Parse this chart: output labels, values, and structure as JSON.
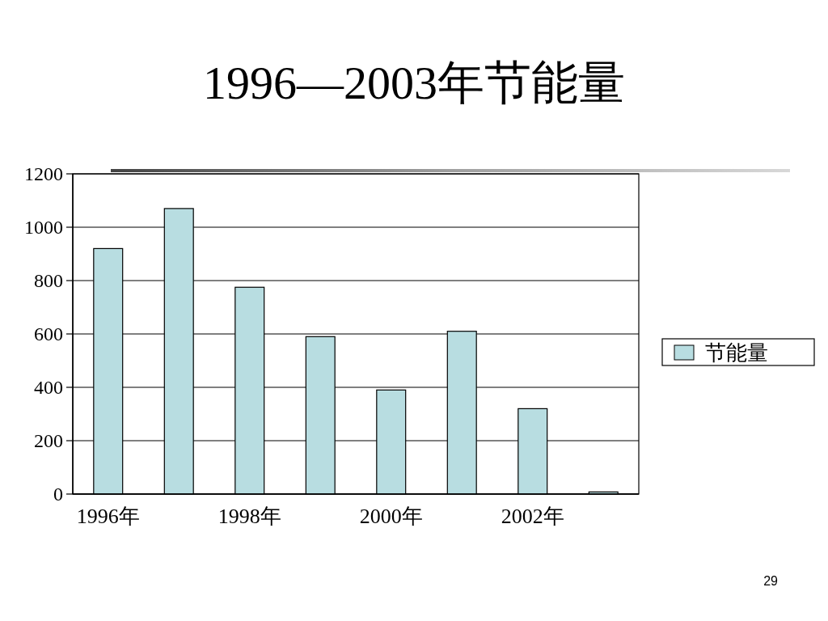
{
  "chart_data": {
    "type": "bar",
    "title": "1996—2003年节能量",
    "categories": [
      "1996年",
      null,
      "1998年",
      null,
      "2000年",
      null,
      "2002年",
      null
    ],
    "series": [
      {
        "name": "节能量",
        "color": "#b8dde1",
        "values": [
          920,
          1070,
          775,
          590,
          390,
          610,
          320,
          8
        ]
      }
    ],
    "ylim": [
      0,
      1200
    ],
    "yticks": [
      0,
      200,
      400,
      600,
      800,
      1000,
      1200
    ],
    "grid": "y",
    "legend": "right",
    "annotations": [
      "29"
    ]
  }
}
